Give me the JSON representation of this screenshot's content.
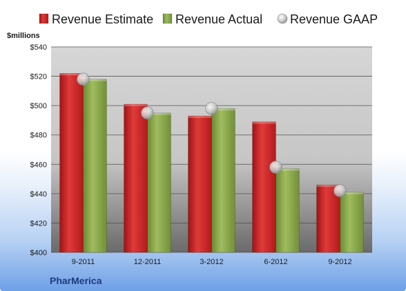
{
  "chart_data": {
    "type": "bar",
    "categories": [
      "9-2011",
      "12-2011",
      "3-2012",
      "6-2012",
      "9-2012"
    ],
    "series": [
      {
        "name": "Revenue Estimate",
        "type": "bar",
        "color": "#d42a2a",
        "values": [
          522,
          501,
          493,
          489,
          446
        ]
      },
      {
        "name": "Revenue Actual",
        "type": "bar",
        "color": "#8fac4e",
        "values": [
          518,
          495,
          498,
          457,
          441
        ]
      },
      {
        "name": "Revenue GAAP",
        "type": "marker",
        "color": "#b8b8b8",
        "values": [
          518,
          495,
          498,
          458,
          442
        ]
      }
    ],
    "ylabel": "$millions",
    "ylim": [
      400,
      540
    ],
    "yticks": [
      400,
      420,
      440,
      460,
      480,
      500,
      520,
      540
    ],
    "ytick_labels": [
      "$400",
      "$420",
      "$440",
      "$460",
      "$480",
      "$500",
      "$520",
      "$540"
    ],
    "grid": true,
    "legend_position": "top",
    "company": "PharMerica"
  }
}
